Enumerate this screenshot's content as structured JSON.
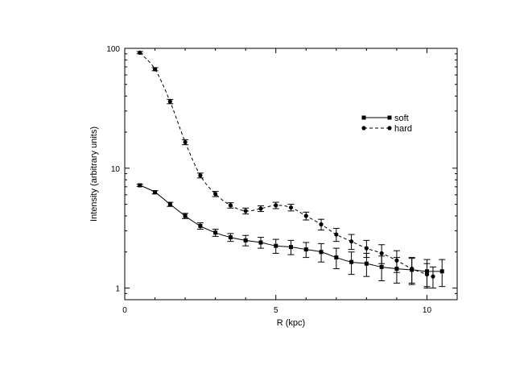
{
  "chart_data": {
    "type": "line",
    "xlabel": "R (kpc)",
    "ylabel": "Intensity (arbitrary units)",
    "xlim": [
      0,
      11
    ],
    "ylim": [
      0.8,
      100
    ],
    "yscale": "log",
    "x_ticks": [
      0,
      5,
      10
    ],
    "x_tick_labels": [
      "0",
      "5",
      "10"
    ],
    "y_ticks": [
      1,
      10,
      100
    ],
    "y_tick_labels": [
      "1",
      "10",
      "100"
    ],
    "legend_position": "top-right",
    "grid": false,
    "series": [
      {
        "name": "soft",
        "line_style": "solid",
        "marker": "square",
        "points": [
          {
            "x": 0.5,
            "y": 7.2,
            "err": 0.15
          },
          {
            "x": 1.0,
            "y": 6.3,
            "err": 0.2
          },
          {
            "x": 1.5,
            "y": 5.0,
            "err": 0.2
          },
          {
            "x": 2.0,
            "y": 4.0,
            "err": 0.2
          },
          {
            "x": 2.5,
            "y": 3.3,
            "err": 0.2
          },
          {
            "x": 3.0,
            "y": 2.9,
            "err": 0.2
          },
          {
            "x": 3.5,
            "y": 2.65,
            "err": 0.2
          },
          {
            "x": 4.0,
            "y": 2.5,
            "err": 0.25
          },
          {
            "x": 4.5,
            "y": 2.4,
            "err": 0.25
          },
          {
            "x": 5.0,
            "y": 2.25,
            "err": 0.3
          },
          {
            "x": 5.5,
            "y": 2.2,
            "err": 0.3
          },
          {
            "x": 6.0,
            "y": 2.1,
            "err": 0.3
          },
          {
            "x": 6.5,
            "y": 2.0,
            "err": 0.35
          },
          {
            "x": 7.0,
            "y": 1.8,
            "err": 0.35
          },
          {
            "x": 7.5,
            "y": 1.65,
            "err": 0.35
          },
          {
            "x": 8.0,
            "y": 1.6,
            "err": 0.35
          },
          {
            "x": 8.5,
            "y": 1.5,
            "err": 0.35
          },
          {
            "x": 9.0,
            "y": 1.45,
            "err": 0.35
          },
          {
            "x": 9.5,
            "y": 1.42,
            "err": 0.35
          },
          {
            "x": 10.0,
            "y": 1.38,
            "err": 0.35
          },
          {
            "x": 10.5,
            "y": 1.38,
            "err": 0.35
          }
        ]
      },
      {
        "name": "hard",
        "line_style": "dashed",
        "marker": "circle",
        "points": [
          {
            "x": 0.5,
            "y": 92,
            "err": 2
          },
          {
            "x": 1.0,
            "y": 67,
            "err": 2
          },
          {
            "x": 1.5,
            "y": 36,
            "err": 1.5
          },
          {
            "x": 2.0,
            "y": 16.5,
            "err": 0.8
          },
          {
            "x": 2.5,
            "y": 8.7,
            "err": 0.4
          },
          {
            "x": 3.0,
            "y": 6.1,
            "err": 0.3
          },
          {
            "x": 3.5,
            "y": 4.9,
            "err": 0.25
          },
          {
            "x": 4.0,
            "y": 4.4,
            "err": 0.25
          },
          {
            "x": 4.5,
            "y": 4.6,
            "err": 0.25
          },
          {
            "x": 5.0,
            "y": 4.9,
            "err": 0.3
          },
          {
            "x": 5.5,
            "y": 4.7,
            "err": 0.3
          },
          {
            "x": 6.0,
            "y": 4.0,
            "err": 0.3
          },
          {
            "x": 6.5,
            "y": 3.4,
            "err": 0.35
          },
          {
            "x": 7.0,
            "y": 2.8,
            "err": 0.35
          },
          {
            "x": 7.5,
            "y": 2.45,
            "err": 0.35
          },
          {
            "x": 8.0,
            "y": 2.15,
            "err": 0.35
          },
          {
            "x": 8.5,
            "y": 1.95,
            "err": 0.35
          },
          {
            "x": 9.0,
            "y": 1.7,
            "err": 0.35
          },
          {
            "x": 9.5,
            "y": 1.45,
            "err": 0.35
          },
          {
            "x": 10.0,
            "y": 1.3,
            "err": 0.3
          },
          {
            "x": 10.2,
            "y": 1.25,
            "err": 0.25
          }
        ]
      }
    ]
  }
}
